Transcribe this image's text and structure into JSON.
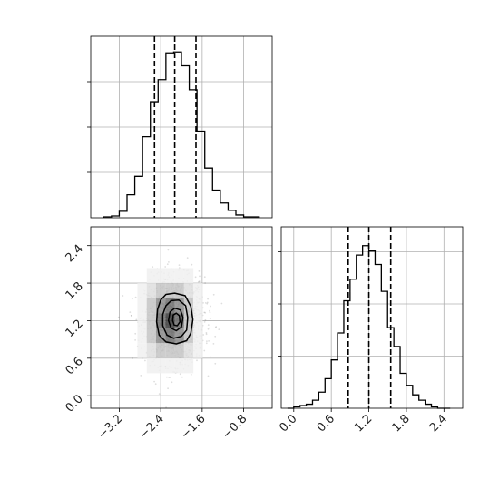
{
  "chart_data": {
    "type": "corner",
    "grid": true,
    "x_param": {
      "axis_range": [
        -3.75,
        -0.25
      ],
      "ticks": [
        -3.2,
        -2.4,
        -1.6,
        -0.8
      ],
      "tick_labels": [
        "−3.2",
        "−2.4",
        "−1.6",
        "−0.8"
      ],
      "quantiles": [
        -2.52,
        -2.13,
        -1.72
      ]
    },
    "y_param": {
      "axis_range": [
        -0.2,
        2.7
      ],
      "ticks": [
        0.0,
        0.6,
        1.2,
        1.8,
        2.4
      ],
      "tick_labels": [
        "0.0",
        "0.6",
        "1.2",
        "1.8",
        "2.4"
      ],
      "quantiles": [
        0.87,
        1.2,
        1.55
      ]
    },
    "hist_x": {
      "bin_edges": [
        -3.5,
        -3.35,
        -3.2,
        -3.05,
        -2.9,
        -2.75,
        -2.6,
        -2.45,
        -2.3,
        -2.15,
        -2.0,
        -1.85,
        -1.7,
        -1.55,
        -1.4,
        -1.25,
        -1.1,
        -0.95,
        -0.8,
        -0.65,
        -0.5
      ],
      "counts": [
        1,
        2,
        7,
        25,
        45,
        88,
        126,
        150,
        179,
        180,
        165,
        139,
        94,
        54,
        30,
        16,
        8,
        3,
        1,
        1
      ],
      "ymax": 197
    },
    "hist_y": {
      "bin_edges": [
        -0.1,
        0.0,
        0.1,
        0.2,
        0.3,
        0.4,
        0.5,
        0.6,
        0.7,
        0.8,
        0.9,
        1.0,
        1.1,
        1.2,
        1.3,
        1.4,
        1.5,
        1.6,
        1.7,
        1.8,
        1.9,
        2.0,
        2.1,
        2.2,
        2.3,
        2.4,
        2.5
      ],
      "counts": [
        0,
        1,
        2,
        3,
        6,
        12,
        22,
        36,
        56,
        80,
        96,
        114,
        121,
        117,
        107,
        87,
        60,
        46,
        26,
        17,
        10,
        6,
        3,
        1,
        0,
        0
      ],
      "ymax": 135
    },
    "joint": {
      "center": [
        -2.13,
        1.2
      ],
      "sigma": [
        0.25,
        0.3
      ],
      "density_grid": [
        [
          0,
          0,
          0,
          0,
          0,
          0,
          0,
          0,
          0,
          0
        ],
        [
          0,
          0,
          1,
          1,
          1,
          1,
          1,
          0,
          0,
          0
        ],
        [
          0,
          1,
          2,
          3,
          3,
          3,
          2,
          1,
          0,
          0
        ],
        [
          0,
          1,
          3,
          5,
          6,
          5,
          3,
          1,
          0,
          0
        ],
        [
          0,
          1,
          3,
          6,
          8,
          6,
          3,
          1,
          0,
          0
        ],
        [
          0,
          1,
          3,
          5,
          6,
          5,
          3,
          1,
          0,
          0
        ],
        [
          0,
          1,
          2,
          3,
          3,
          3,
          2,
          1,
          0,
          0
        ],
        [
          0,
          0,
          1,
          1,
          1,
          1,
          1,
          0,
          0,
          0
        ],
        [
          0,
          0,
          0,
          0,
          0,
          0,
          0,
          0,
          0,
          0
        ]
      ],
      "contours": [
        [
          [
            -2.4,
            1.53
          ],
          [
            -2.3,
            1.62
          ],
          [
            -2.13,
            1.64
          ],
          [
            -1.93,
            1.6
          ],
          [
            -1.82,
            1.43
          ],
          [
            -1.78,
            1.22
          ],
          [
            -1.82,
            1.0
          ],
          [
            -1.9,
            0.88
          ],
          [
            -2.1,
            0.83
          ],
          [
            -2.3,
            0.86
          ],
          [
            -2.43,
            0.97
          ],
          [
            -2.48,
            1.18
          ],
          [
            -2.46,
            1.38
          ]
        ],
        [
          [
            -2.3,
            1.44
          ],
          [
            -2.2,
            1.52
          ],
          [
            -2.05,
            1.53
          ],
          [
            -1.92,
            1.44
          ],
          [
            -1.88,
            1.25
          ],
          [
            -1.9,
            1.05
          ],
          [
            -2.0,
            0.95
          ],
          [
            -2.15,
            0.92
          ],
          [
            -2.28,
            0.97
          ],
          [
            -2.36,
            1.12
          ],
          [
            -2.36,
            1.3
          ]
        ],
        [
          [
            -2.22,
            1.34
          ],
          [
            -2.13,
            1.4
          ],
          [
            -2.02,
            1.37
          ],
          [
            -1.97,
            1.25
          ],
          [
            -2.0,
            1.1
          ],
          [
            -2.1,
            1.04
          ],
          [
            -2.2,
            1.08
          ],
          [
            -2.25,
            1.2
          ]
        ],
        [
          [
            -2.16,
            1.29
          ],
          [
            -2.1,
            1.32
          ],
          [
            -2.04,
            1.28
          ],
          [
            -2.03,
            1.18
          ],
          [
            -2.08,
            1.12
          ],
          [
            -2.14,
            1.13
          ],
          [
            -2.17,
            1.2
          ]
        ]
      ]
    }
  }
}
